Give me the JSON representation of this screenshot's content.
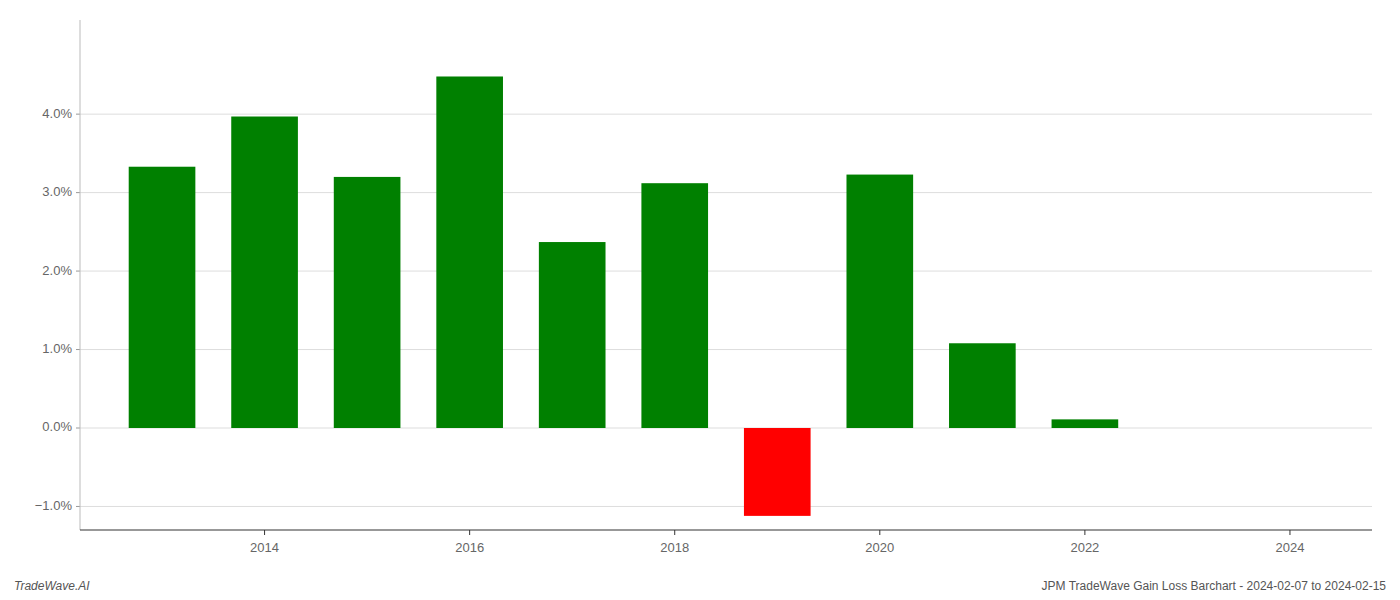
{
  "chart_data": {
    "type": "bar",
    "x": [
      2013,
      2014,
      2015,
      2016,
      2017,
      2018,
      2019,
      2020,
      2021,
      2022,
      2023
    ],
    "values": [
      0.0333,
      0.0397,
      0.032,
      0.0448,
      0.0237,
      0.0312,
      -0.0112,
      0.0323,
      0.0108,
      0.0011,
      0.0
    ],
    "colors": [
      "#008000",
      "#008000",
      "#008000",
      "#008000",
      "#008000",
      "#008000",
      "#ff0000",
      "#008000",
      "#008000",
      "#008000",
      "#008000"
    ],
    "xlim": [
      2012.2,
      2024.8
    ],
    "xticks": [
      2014,
      2016,
      2018,
      2020,
      2022,
      2024
    ],
    "ylim": [
      -0.013,
      0.052
    ],
    "yticks": [
      {
        "value": -0.01,
        "label": "−1.0%"
      },
      {
        "value": 0.0,
        "label": "0.0%"
      },
      {
        "value": 0.01,
        "label": "1.0%"
      },
      {
        "value": 0.02,
        "label": "2.0%"
      },
      {
        "value": 0.03,
        "label": "3.0%"
      },
      {
        "value": 0.04,
        "label": "4.0%"
      }
    ],
    "grid": true,
    "annotations": [
      "TradeWave.AI",
      "JPM TradeWave Gain Loss Barchart - 2024-02-07 to 2024-02-15"
    ]
  }
}
